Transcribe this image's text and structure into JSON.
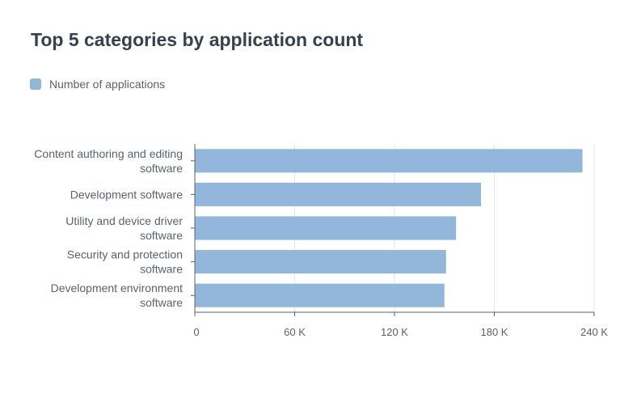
{
  "title": "Top 5 categories by application count",
  "legend": {
    "label": "Number of applications",
    "color": "#93b7da"
  },
  "chart_data": {
    "type": "bar",
    "orientation": "horizontal",
    "title": "Top 5 categories by application count",
    "xlabel": "",
    "ylabel": "",
    "categories": [
      [
        "Content authoring and editing",
        "software"
      ],
      [
        "Development software"
      ],
      [
        "Utility and device driver",
        "software"
      ],
      [
        "Security and protection",
        "software"
      ],
      [
        "Development environment",
        "software"
      ]
    ],
    "series": [
      {
        "name": "Number of applications",
        "values": [
          233000,
          172000,
          157000,
          151000,
          150000
        ]
      }
    ],
    "xlim": [
      0,
      240000
    ],
    "x_ticks": [
      0,
      60000,
      120000,
      180000,
      240000
    ],
    "x_tick_labels": [
      "0",
      "60 K",
      "120 K",
      "180 K",
      "240 K"
    ],
    "grid": "vertical",
    "legend_position": "top-left",
    "bar_color": "#93b7da"
  }
}
